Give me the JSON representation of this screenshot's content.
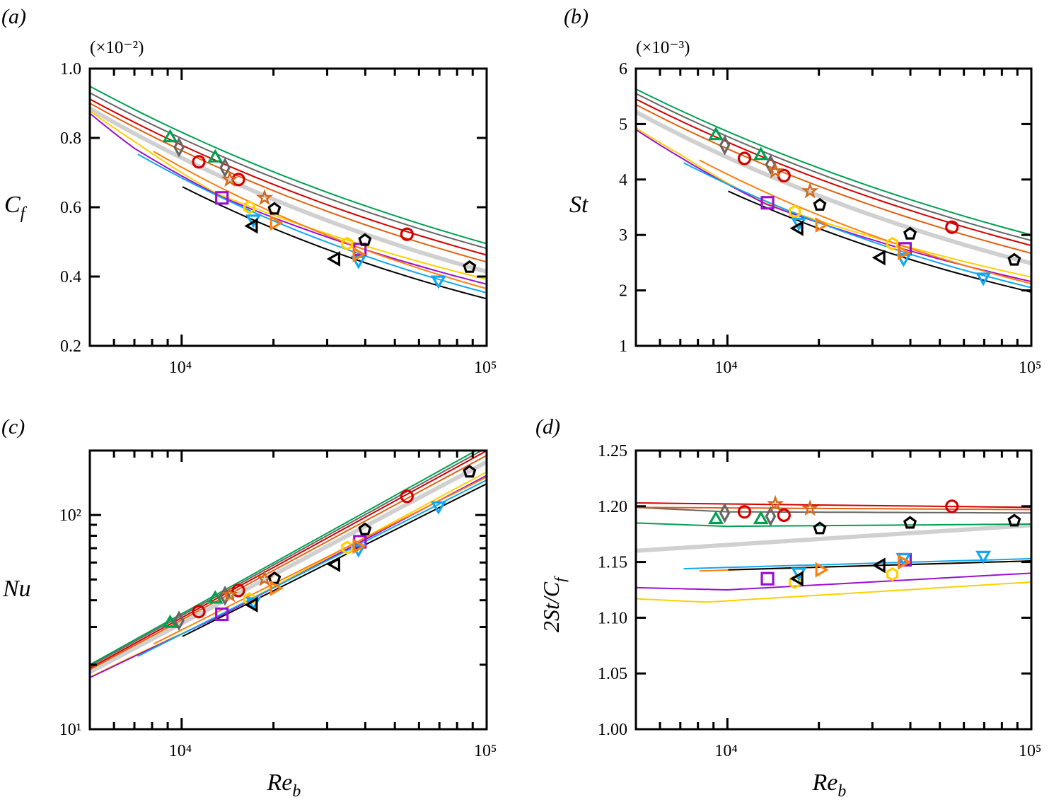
{
  "chart_data": {
    "type": "scatter",
    "xscale": "log",
    "xlim": [
      5000,
      100000
    ],
    "panels": [
      {
        "id": "a",
        "panel_label": "(a)",
        "quantity": "Cf",
        "multiplier": "(×10⁻²)",
        "ylabel": {
          "main": "C",
          "sub": "f"
        },
        "xlabel": null,
        "yscale": "linear",
        "ylim": [
          0.2,
          1.0
        ],
        "yticks": [
          {
            "value": 1.0,
            "label": "1.0"
          },
          {
            "value": 0.8,
            "label": "0.8"
          },
          {
            "value": 0.6,
            "label": "0.6"
          },
          {
            "value": 0.4,
            "label": "0.4"
          },
          {
            "value": 0.2,
            "label": "0.2"
          }
        ],
        "xticks": [
          {
            "value": 10000,
            "label": "10⁴"
          },
          {
            "value": 100000,
            "label": "10⁵"
          }
        ]
      },
      {
        "id": "b",
        "panel_label": "(b)",
        "quantity": "St",
        "multiplier": "(×10⁻³)",
        "ylabel": {
          "main": "St",
          "sub": ""
        },
        "xlabel": null,
        "yscale": "linear",
        "ylim": [
          1,
          6
        ],
        "yticks": [
          {
            "value": 6,
            "label": "6"
          },
          {
            "value": 5,
            "label": "5"
          },
          {
            "value": 4,
            "label": "4"
          },
          {
            "value": 3,
            "label": "3"
          },
          {
            "value": 2,
            "label": "2"
          },
          {
            "value": 1,
            "label": "1"
          }
        ],
        "xticks": [
          {
            "value": 10000,
            "label": "10⁴"
          },
          {
            "value": 100000,
            "label": "10⁵"
          }
        ]
      },
      {
        "id": "c",
        "panel_label": "(c)",
        "quantity": "Nu",
        "multiplier": "",
        "ylabel": {
          "main": "Nu",
          "sub": ""
        },
        "xlabel": {
          "main": "Re",
          "sub": "b"
        },
        "yscale": "log",
        "ylim": [
          10,
          200
        ],
        "yticks": [
          {
            "value": 100,
            "label": "10²"
          },
          {
            "value": 10,
            "label": "10¹"
          }
        ],
        "xticks": [
          {
            "value": 10000,
            "label": "10⁴"
          },
          {
            "value": 100000,
            "label": "10⁵"
          }
        ]
      },
      {
        "id": "d",
        "panel_label": "(d)",
        "quantity": "ratio",
        "multiplier": "",
        "ylabel": {
          "main": "2St/C",
          "sub": "f"
        },
        "xlabel": {
          "main": "Re",
          "sub": "b"
        },
        "yscale": "linear",
        "ylim": [
          1.0,
          1.25
        ],
        "yticks": [
          {
            "value": 1.25,
            "label": "1.25"
          },
          {
            "value": 1.2,
            "label": "1.20"
          },
          {
            "value": 1.15,
            "label": "1.15"
          },
          {
            "value": 1.1,
            "label": "1.10"
          },
          {
            "value": 1.05,
            "label": "1.05"
          },
          {
            "value": 1.0,
            "label": "1.00"
          }
        ],
        "xticks": [
          {
            "value": 10000,
            "label": "10⁴"
          },
          {
            "value": 100000,
            "label": "10⁵"
          }
        ]
      }
    ],
    "series": [
      {
        "marker": "triangle-up",
        "color": "#00a050",
        "points": [
          {
            "Re": 9165,
            "Cf": 0.8,
            "St": 4.79,
            "Nu": 31.2,
            "ratio": 1.188
          },
          {
            "Re": 12890,
            "Cf": 0.742,
            "St": 4.43,
            "Nu": 40.5,
            "ratio": 1.188
          }
        ]
      },
      {
        "marker": "diamond",
        "color": "#666666",
        "points": [
          {
            "Re": 9800,
            "Cf": 0.773,
            "St": 4.62,
            "Nu": 32.1,
            "ratio": 1.194
          },
          {
            "Re": 13870,
            "Cf": 0.714,
            "St": 4.27,
            "Nu": 42.0,
            "ratio": 1.191
          }
        ]
      },
      {
        "marker": "circle",
        "color": "#d40000",
        "points": [
          {
            "Re": 11380,
            "Cf": 0.731,
            "St": 4.38,
            "Nu": 35.4,
            "ratio": 1.195
          },
          {
            "Re": 15350,
            "Cf": 0.68,
            "St": 4.07,
            "Nu": 44.4,
            "ratio": 1.192
          },
          {
            "Re": 54800,
            "Cf": 0.522,
            "St": 3.14,
            "Nu": 122.2,
            "ratio": 1.2
          }
        ]
      },
      {
        "marker": "star",
        "color": "#d2691e",
        "points": [
          {
            "Re": 14380,
            "Cf": 0.68,
            "St": 4.15,
            "Nu": 42.4,
            "ratio": 1.202
          },
          {
            "Re": 18700,
            "Cf": 0.627,
            "St": 3.79,
            "Nu": 50.3,
            "ratio": 1.198
          }
        ]
      },
      {
        "marker": "square",
        "color": "#9b10d0",
        "points": [
          {
            "Re": 13550,
            "Cf": 0.627,
            "St": 3.58,
            "Nu": 34.4,
            "ratio": 1.135
          },
          {
            "Re": 38400,
            "Cf": 0.478,
            "St": 2.75,
            "Nu": 75.0,
            "ratio": 1.152
          }
        ]
      },
      {
        "marker": "hexagon",
        "color": "#ffd000",
        "points": [
          {
            "Re": 16670,
            "Cf": 0.6,
            "St": 3.42,
            "Nu": 40.5,
            "ratio": 1.132
          },
          {
            "Re": 34900,
            "Cf": 0.495,
            "St": 2.84,
            "Nu": 70.4,
            "ratio": 1.139
          }
        ]
      },
      {
        "marker": "pentagon",
        "color": "#000000",
        "points": [
          {
            "Re": 20140,
            "Cf": 0.595,
            "St": 3.54,
            "Nu": 50.6,
            "ratio": 1.18
          },
          {
            "Re": 39900,
            "Cf": 0.505,
            "St": 3.02,
            "Nu": 85.6,
            "ratio": 1.185
          },
          {
            "Re": 87900,
            "Cf": 0.427,
            "St": 2.55,
            "Nu": 159,
            "ratio": 1.187
          }
        ]
      },
      {
        "marker": "triangle-down",
        "color": "#10a8f0",
        "points": [
          {
            "Re": 17180,
            "Cf": 0.566,
            "St": 3.23,
            "Nu": 39.4,
            "ratio": 1.141
          },
          {
            "Re": 38000,
            "Cf": 0.447,
            "St": 2.58,
            "Nu": 69.6,
            "ratio": 1.154
          },
          {
            "Re": 69500,
            "Cf": 0.39,
            "St": 2.24,
            "Nu": 110.5,
            "ratio": 1.156
          }
        ]
      },
      {
        "marker": "triangle-right",
        "color": "#ff7f0e",
        "points": [
          {
            "Re": 20140,
            "Cf": 0.555,
            "St": 3.18,
            "Nu": 45.5,
            "ratio": 1.143
          },
          {
            "Re": 37600,
            "Cf": 0.464,
            "St": 2.68,
            "Nu": 71.5,
            "ratio": 1.15
          }
        ]
      },
      {
        "marker": "triangle-left",
        "color": "#000000",
        "points": [
          {
            "Re": 17180,
            "Cf": 0.546,
            "St": 3.12,
            "Nu": 38.1,
            "ratio": 1.135
          },
          {
            "Re": 32000,
            "Cf": 0.451,
            "St": 2.59,
            "Nu": 58.8,
            "ratio": 1.147
          }
        ]
      }
    ],
    "lines": [
      {
        "name": "correlation-thick",
        "color": "#d0d0d0",
        "weight": "thick",
        "Cf": [
          [
            5000,
            0.885
          ],
          [
            100000,
            0.414
          ]
        ],
        "St": [
          [
            5000,
            5.22
          ],
          [
            100000,
            2.49
          ]
        ],
        "Nu": [
          [
            5000,
            18.5
          ],
          [
            100000,
            176.8
          ]
        ],
        "ratio": [
          [
            5000,
            1.16
          ],
          [
            100000,
            1.183
          ]
        ]
      },
      {
        "name": "green",
        "color": "#00a050",
        "weight": "thin",
        "Cf": [
          [
            5000,
            0.949
          ],
          [
            100000,
            0.495
          ]
        ],
        "St": [
          [
            5000,
            5.63
          ],
          [
            100000,
            3.0
          ]
        ],
        "Nu": [
          [
            5000,
            20.0
          ],
          [
            100000,
            213
          ]
        ],
        "ratio": [
          [
            5000,
            1.185
          ],
          [
            10000,
            1.182
          ],
          [
            100000,
            1.184
          ]
        ]
      },
      {
        "name": "gray",
        "color": "#666666",
        "weight": "thin",
        "Cf": [
          [
            5000,
            0.93
          ],
          [
            100000,
            0.481
          ]
        ],
        "St": [
          [
            5000,
            5.55
          ],
          [
            100000,
            2.9
          ]
        ],
        "Nu": [
          [
            5000,
            19.7
          ],
          [
            100000,
            206
          ]
        ],
        "ratio": [
          [
            5000,
            1.199
          ],
          [
            10000,
            1.195
          ],
          [
            100000,
            1.194
          ]
        ]
      },
      {
        "name": "red",
        "color": "#d40000",
        "weight": "thin",
        "Cf": [
          [
            5000,
            0.912
          ],
          [
            100000,
            0.462
          ]
        ],
        "St": [
          [
            5000,
            5.45
          ],
          [
            100000,
            2.81
          ]
        ],
        "Nu": [
          [
            5000,
            19.3
          ],
          [
            100000,
            199.5
          ]
        ],
        "ratio": [
          [
            5000,
            1.203
          ],
          [
            100000,
            1.199
          ]
        ]
      },
      {
        "name": "dark-orange",
        "color": "#e06010",
        "weight": "thin",
        "Cf": [
          [
            5000,
            0.9
          ],
          [
            100000,
            0.442
          ]
        ],
        "St": [
          [
            5000,
            5.35
          ],
          [
            100000,
            2.67
          ]
        ],
        "Nu": [
          [
            5000,
            19.0
          ],
          [
            100000,
            189.6
          ]
        ],
        "ratio": [
          [
            5000,
            1.199
          ],
          [
            100000,
            1.197
          ]
        ]
      },
      {
        "name": "yellow",
        "color": "#ffd000",
        "weight": "thin",
        "Cf": [
          [
            5000,
            0.878
          ],
          [
            7000,
            0.79
          ],
          [
            13000,
            0.64
          ],
          [
            100000,
            0.392
          ]
        ],
        "St": [
          [
            5000,
            4.93
          ],
          [
            7000,
            4.45
          ],
          [
            13000,
            3.6
          ],
          [
            100000,
            2.24
          ]
        ],
        "Nu": [
          [
            5000,
            17.5
          ],
          [
            7000,
            22.1
          ],
          [
            13000,
            33.2
          ],
          [
            100000,
            159
          ]
        ],
        "ratio": [
          [
            5000,
            1.117
          ],
          [
            8500,
            1.114
          ],
          [
            100000,
            1.132
          ]
        ]
      },
      {
        "name": "purple",
        "color": "#9b10d0",
        "weight": "thin",
        "Cf": [
          [
            5000,
            0.871
          ],
          [
            7000,
            0.77
          ],
          [
            13500,
            0.63
          ],
          [
            100000,
            0.378
          ]
        ],
        "St": [
          [
            5000,
            4.9
          ],
          [
            7000,
            4.4
          ],
          [
            13500,
            3.55
          ],
          [
            100000,
            2.16
          ]
        ],
        "Nu": [
          [
            5000,
            17.4
          ],
          [
            7000,
            21.9
          ],
          [
            13500,
            34.0
          ],
          [
            100000,
            153
          ]
        ],
        "ratio": [
          [
            5000,
            1.127
          ],
          [
            10000,
            1.125
          ],
          [
            100000,
            1.14
          ]
        ]
      },
      {
        "name": "orange",
        "color": "#ff7f0e",
        "weight": "thin",
        "Cf": [
          [
            8090,
            0.761
          ],
          [
            100000,
            0.365
          ]
        ],
        "St": [
          [
            8090,
            4.35
          ],
          [
            100000,
            2.12
          ]
        ],
        "Nu": [
          [
            8090,
            25.0
          ],
          [
            100000,
            150.5
          ]
        ],
        "ratio": [
          [
            8090,
            1.142
          ],
          [
            100000,
            1.151
          ]
        ]
      },
      {
        "name": "cyan",
        "color": "#10a8f0",
        "weight": "thin",
        "Cf": [
          [
            7180,
            0.753
          ],
          [
            100000,
            0.353
          ]
        ],
        "St": [
          [
            7180,
            4.3
          ],
          [
            100000,
            2.05
          ]
        ],
        "Nu": [
          [
            7180,
            21.9
          ],
          [
            100000,
            145.6
          ]
        ],
        "ratio": [
          [
            7180,
            1.144
          ],
          [
            100000,
            1.153
          ]
        ]
      },
      {
        "name": "black",
        "color": "#000000",
        "weight": "thin",
        "Cf": [
          [
            10060,
            0.659
          ],
          [
            100000,
            0.336
          ]
        ],
        "St": [
          [
            10060,
            3.79
          ],
          [
            100000,
            1.97
          ]
        ],
        "Nu": [
          [
            10060,
            27.1
          ],
          [
            100000,
            139.9
          ]
        ],
        "ratio": [
          [
            10060,
            1.143
          ],
          [
            100000,
            1.151
          ]
        ]
      }
    ]
  }
}
